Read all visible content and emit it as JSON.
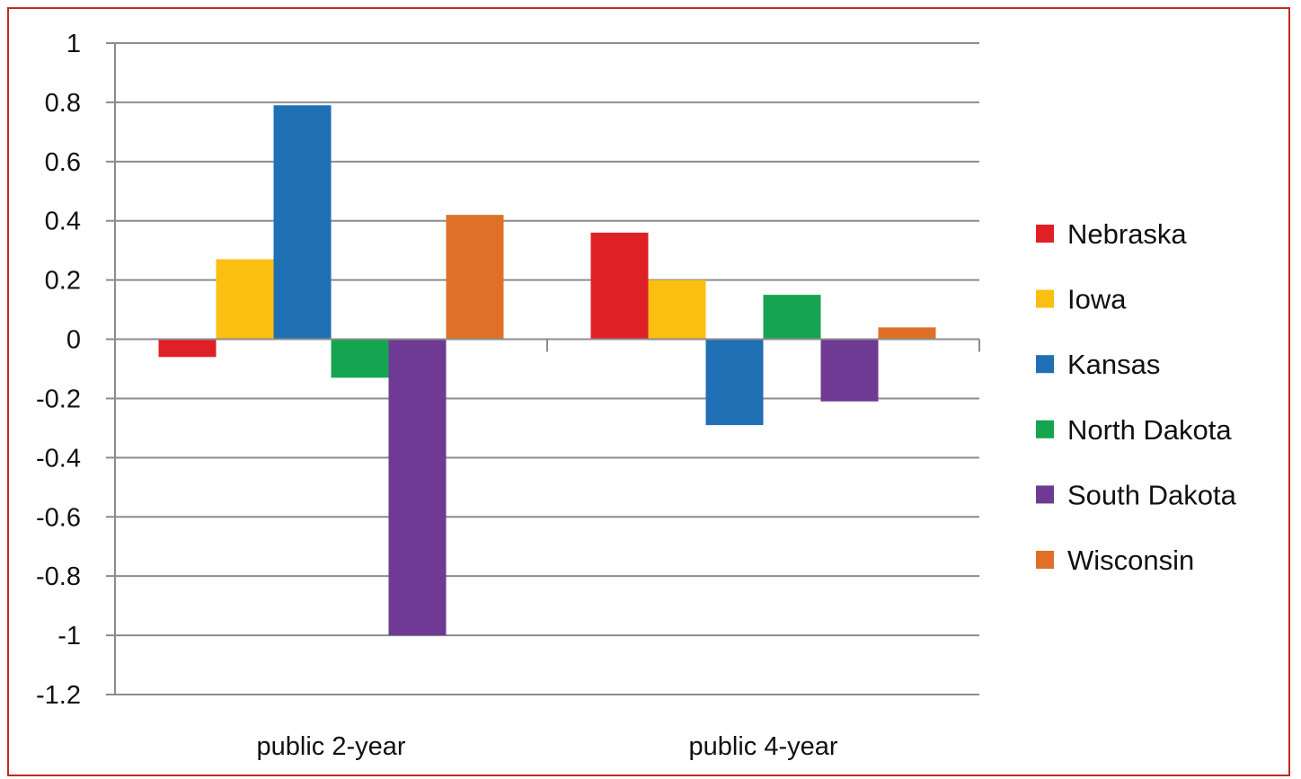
{
  "chart_data": {
    "type": "bar",
    "title": "",
    "xlabel": "",
    "ylabel": "",
    "categories": [
      "public 2-year",
      "public 4-year"
    ],
    "series": [
      {
        "name": "Nebraska",
        "values": [
          -0.06,
          0.36
        ],
        "color": "#e02027"
      },
      {
        "name": "Iowa",
        "values": [
          0.27,
          0.2
        ],
        "color": "#fbbf12"
      },
      {
        "name": "Kansas",
        "values": [
          0.79,
          -0.29
        ],
        "color": "#1f6fb5"
      },
      {
        "name": "North Dakota",
        "values": [
          -0.13,
          0.15
        ],
        "color": "#15a550"
      },
      {
        "name": "South Dakota",
        "values": [
          -1.0,
          -0.21
        ],
        "color": "#6e3a93"
      },
      {
        "name": "Wisconsin",
        "values": [
          0.42,
          0.04
        ],
        "color": "#e07028"
      }
    ],
    "ylim": [
      -1.2,
      1.0
    ],
    "yticks": [
      -1.2,
      -1,
      -0.8,
      -0.6,
      -0.4,
      -0.2,
      0,
      0.2,
      0.4,
      0.6,
      0.8,
      1
    ],
    "ytick_labels": [
      "-1.2",
      "-1",
      "-0.8",
      "-0.6",
      "-0.4",
      "-0.2",
      "0",
      "0.2",
      "0.4",
      "0.6",
      "0.8",
      "1"
    ],
    "grid": true,
    "legend_position": "right"
  }
}
